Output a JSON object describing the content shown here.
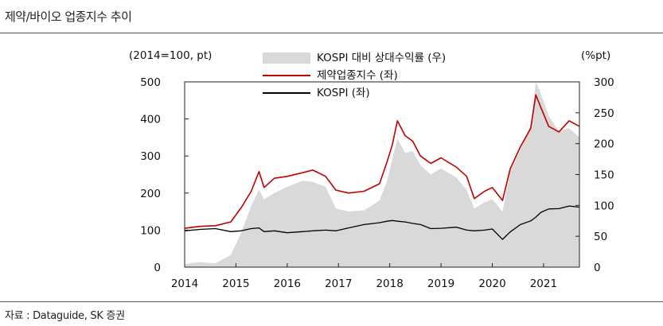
{
  "header": {
    "title": "제약/바이오 업종지수 추이"
  },
  "footer": {
    "source": "자료 : Dataguide, SK 증권"
  },
  "chart_data": {
    "type": "line",
    "title": "제약/바이오 업종지수 추이",
    "left_unit": "(2014=100, pt)",
    "right_unit": "(%pt)",
    "x_ticks": [
      "2014",
      "2015",
      "2016",
      "2017",
      "2018",
      "2019",
      "2020",
      "2021"
    ],
    "x_range": [
      2014.0,
      2021.7
    ],
    "left_ylim": [
      0,
      500
    ],
    "left_ticks": [
      "0",
      "100",
      "200",
      "300",
      "400",
      "500"
    ],
    "right_ylim": [
      0,
      300
    ],
    "right_ticks": [
      "0",
      "50",
      "100",
      "150",
      "200",
      "250",
      "300"
    ],
    "legend": [
      {
        "name": "KOSPI 대비 상대수익률 (우)",
        "kind": "area",
        "color": "#d9d9d9"
      },
      {
        "name": "제약업종지수 (좌)",
        "kind": "line",
        "color": "#c00000"
      },
      {
        "name": "KOSPI (좌)",
        "kind": "line",
        "color": "#000000"
      }
    ],
    "series": [
      {
        "name": "KOSPI 대비 상대수익률 (우)",
        "axis": "right",
        "points": [
          [
            2014.0,
            5
          ],
          [
            2014.3,
            8
          ],
          [
            2014.6,
            6
          ],
          [
            2014.9,
            20
          ],
          [
            2015.1,
            55
          ],
          [
            2015.3,
            100
          ],
          [
            2015.45,
            125
          ],
          [
            2015.55,
            110
          ],
          [
            2015.75,
            120
          ],
          [
            2016.0,
            130
          ],
          [
            2016.3,
            140
          ],
          [
            2016.5,
            138
          ],
          [
            2016.75,
            130
          ],
          [
            2016.95,
            95
          ],
          [
            2017.2,
            90
          ],
          [
            2017.5,
            92
          ],
          [
            2017.8,
            108
          ],
          [
            2017.95,
            140
          ],
          [
            2018.05,
            175
          ],
          [
            2018.15,
            208
          ],
          [
            2018.3,
            185
          ],
          [
            2018.45,
            188
          ],
          [
            2018.6,
            165
          ],
          [
            2018.8,
            150
          ],
          [
            2019.0,
            160
          ],
          [
            2019.3,
            145
          ],
          [
            2019.5,
            125
          ],
          [
            2019.65,
            95
          ],
          [
            2019.85,
            105
          ],
          [
            2020.0,
            110
          ],
          [
            2020.2,
            90
          ],
          [
            2020.35,
            155
          ],
          [
            2020.55,
            190
          ],
          [
            2020.75,
            230
          ],
          [
            2020.85,
            300
          ],
          [
            2020.95,
            280
          ],
          [
            2021.1,
            245
          ],
          [
            2021.3,
            220
          ],
          [
            2021.5,
            225
          ],
          [
            2021.7,
            210
          ]
        ]
      },
      {
        "name": "제약업종지수 (좌)",
        "axis": "left",
        "points": [
          [
            2014.0,
            105
          ],
          [
            2014.3,
            110
          ],
          [
            2014.6,
            112
          ],
          [
            2014.9,
            122
          ],
          [
            2015.1,
            160
          ],
          [
            2015.3,
            205
          ],
          [
            2015.45,
            258
          ],
          [
            2015.55,
            215
          ],
          [
            2015.75,
            240
          ],
          [
            2016.0,
            245
          ],
          [
            2016.3,
            255
          ],
          [
            2016.5,
            262
          ],
          [
            2016.75,
            245
          ],
          [
            2016.95,
            208
          ],
          [
            2017.2,
            200
          ],
          [
            2017.5,
            205
          ],
          [
            2017.8,
            225
          ],
          [
            2017.95,
            285
          ],
          [
            2018.05,
            330
          ],
          [
            2018.15,
            395
          ],
          [
            2018.3,
            355
          ],
          [
            2018.45,
            340
          ],
          [
            2018.6,
            300
          ],
          [
            2018.8,
            280
          ],
          [
            2019.0,
            295
          ],
          [
            2019.3,
            270
          ],
          [
            2019.5,
            245
          ],
          [
            2019.65,
            185
          ],
          [
            2019.85,
            205
          ],
          [
            2020.0,
            215
          ],
          [
            2020.2,
            180
          ],
          [
            2020.35,
            265
          ],
          [
            2020.55,
            325
          ],
          [
            2020.75,
            375
          ],
          [
            2020.85,
            465
          ],
          [
            2020.95,
            430
          ],
          [
            2021.1,
            380
          ],
          [
            2021.3,
            365
          ],
          [
            2021.5,
            395
          ],
          [
            2021.7,
            380
          ]
        ]
      },
      {
        "name": "KOSPI (좌)",
        "axis": "left",
        "points": [
          [
            2014.0,
            98
          ],
          [
            2014.3,
            102
          ],
          [
            2014.6,
            104
          ],
          [
            2014.9,
            96
          ],
          [
            2015.1,
            98
          ],
          [
            2015.3,
            104
          ],
          [
            2015.45,
            106
          ],
          [
            2015.55,
            96
          ],
          [
            2015.75,
            98
          ],
          [
            2016.0,
            93
          ],
          [
            2016.3,
            96
          ],
          [
            2016.5,
            98
          ],
          [
            2016.75,
            100
          ],
          [
            2016.95,
            98
          ],
          [
            2017.2,
            106
          ],
          [
            2017.5,
            115
          ],
          [
            2017.8,
            120
          ],
          [
            2017.95,
            124
          ],
          [
            2018.05,
            126
          ],
          [
            2018.15,
            124
          ],
          [
            2018.3,
            122
          ],
          [
            2018.45,
            118
          ],
          [
            2018.6,
            115
          ],
          [
            2018.8,
            104
          ],
          [
            2019.0,
            105
          ],
          [
            2019.3,
            108
          ],
          [
            2019.5,
            100
          ],
          [
            2019.65,
            98
          ],
          [
            2019.85,
            100
          ],
          [
            2020.0,
            103
          ],
          [
            2020.2,
            75
          ],
          [
            2020.35,
            95
          ],
          [
            2020.55,
            115
          ],
          [
            2020.75,
            125
          ],
          [
            2020.85,
            135
          ],
          [
            2020.95,
            148
          ],
          [
            2021.1,
            157
          ],
          [
            2021.3,
            158
          ],
          [
            2021.5,
            165
          ],
          [
            2021.7,
            162
          ]
        ]
      }
    ]
  }
}
